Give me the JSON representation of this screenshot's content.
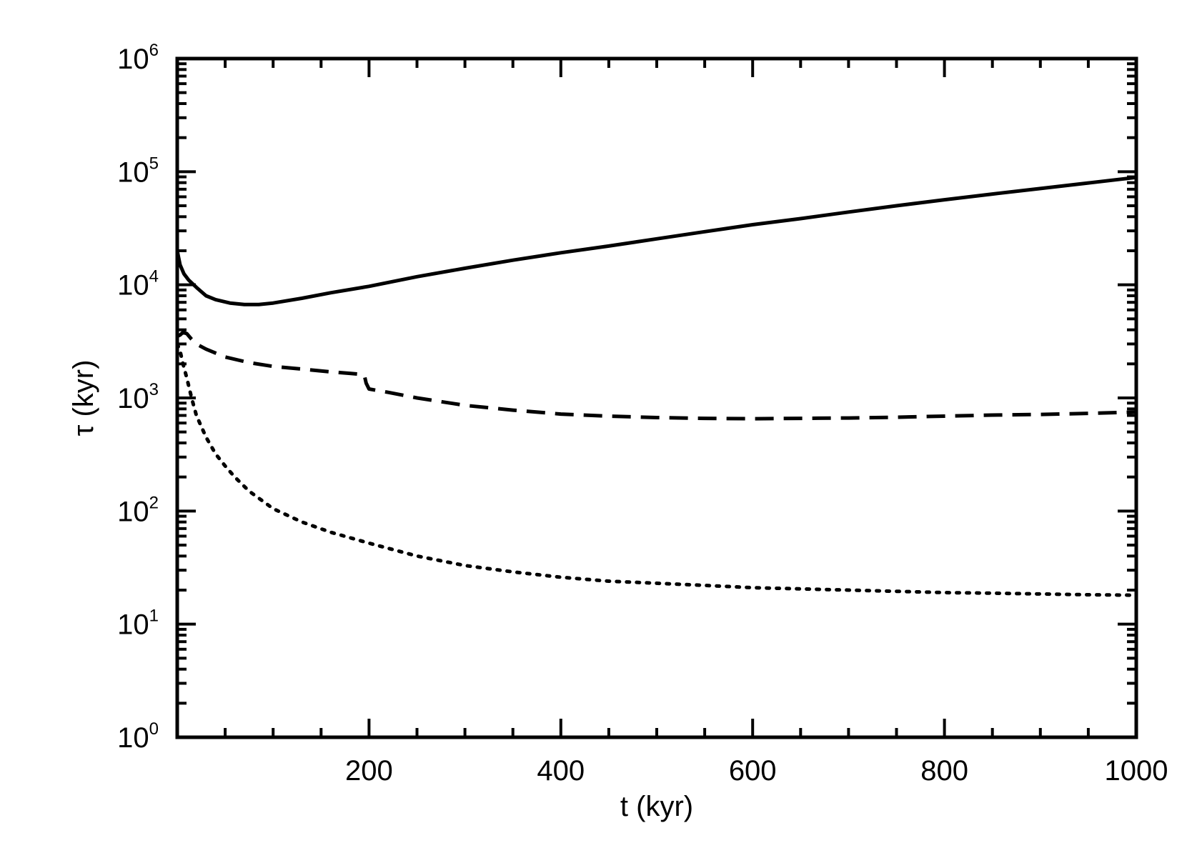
{
  "chart_data": {
    "type": "line",
    "title": "",
    "xlabel": "t (kyr)",
    "ylabel": "τ  (kyr)",
    "xlim": [
      0,
      1000
    ],
    "ylim": [
      1,
      1000000
    ],
    "yscale": "log",
    "grid": false,
    "x_ticks": [
      {
        "value": 200,
        "label": "200"
      },
      {
        "value": 400,
        "label": "400"
      },
      {
        "value": 600,
        "label": "600"
      },
      {
        "value": 800,
        "label": "800"
      },
      {
        "value": 1000,
        "label": "1000"
      }
    ],
    "y_ticks": [
      {
        "value": 1,
        "base": "10",
        "exp": "0"
      },
      {
        "value": 10,
        "base": "10",
        "exp": "1"
      },
      {
        "value": 100,
        "base": "10",
        "exp": "2"
      },
      {
        "value": 1000,
        "base": "10",
        "exp": "3"
      },
      {
        "value": 10000,
        "base": "10",
        "exp": "4"
      },
      {
        "value": 100000,
        "base": "10",
        "exp": "5"
      },
      {
        "value": 1000000,
        "base": "10",
        "exp": "6"
      }
    ],
    "series": [
      {
        "style": "solid",
        "x": [
          0,
          3,
          7,
          12,
          20,
          30,
          40,
          55,
          70,
          85,
          100,
          130,
          160,
          200,
          250,
          300,
          350,
          400,
          450,
          500,
          550,
          600,
          650,
          700,
          750,
          800,
          850,
          900,
          950,
          1000
        ],
        "y": [
          20000,
          15000,
          12500,
          11000,
          9500,
          8000,
          7400,
          6900,
          6700,
          6700,
          6900,
          7600,
          8500,
          9700,
          11800,
          14000,
          16500,
          19200,
          22000,
          25500,
          29500,
          34000,
          38500,
          44000,
          50000,
          56500,
          63500,
          71000,
          79500,
          89000
        ]
      },
      {
        "style": "dashed",
        "x": [
          0,
          3,
          6,
          10,
          15,
          20,
          30,
          50,
          75,
          100,
          130,
          160,
          180,
          190,
          195,
          197,
          200,
          220,
          250,
          300,
          350,
          400,
          450,
          500,
          550,
          600,
          650,
          700,
          750,
          800,
          850,
          900,
          950,
          1000
        ],
        "y": [
          3500,
          3600,
          3800,
          3700,
          3300,
          3000,
          2700,
          2300,
          2050,
          1900,
          1800,
          1700,
          1650,
          1620,
          1600,
          1350,
          1200,
          1120,
          1000,
          860,
          780,
          720,
          690,
          670,
          660,
          655,
          660,
          665,
          675,
          690,
          705,
          715,
          730,
          750
        ]
      },
      {
        "style": "dotted",
        "x": [
          0,
          3,
          6,
          10,
          15,
          20,
          30,
          40,
          50,
          60,
          75,
          100,
          130,
          160,
          200,
          250,
          300,
          350,
          400,
          450,
          500,
          550,
          600,
          650,
          700,
          750,
          800,
          850,
          900,
          950,
          1000
        ],
        "y": [
          3000,
          2600,
          2000,
          1500,
          1000,
          700,
          450,
          320,
          250,
          200,
          150,
          105,
          80,
          65,
          52,
          40,
          33,
          29,
          26,
          24,
          23,
          22,
          21,
          20.5,
          20,
          19.5,
          19,
          18.8,
          18.5,
          18.2,
          18
        ]
      }
    ]
  }
}
